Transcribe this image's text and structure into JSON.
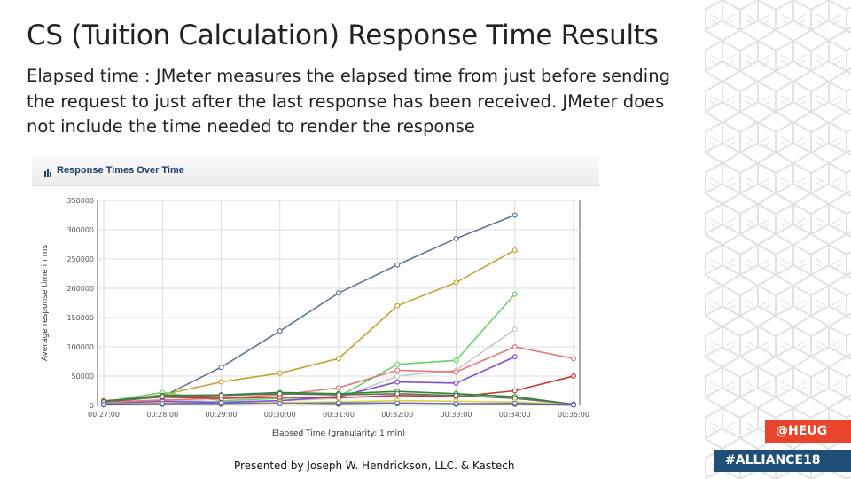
{
  "slide": {
    "title": "CS (Tuition Calculation) Response Time Results",
    "body": "Elapsed time : JMeter measures the elapsed time from just before sending the request to just after the last response has been received. JMeter does not include the time needed to render the response",
    "footer": "Presented by Joseph W. Hendrickson, LLC. & Kastech"
  },
  "badges": {
    "heug": "@HEUG",
    "alliance": "#ALLIANCE18"
  },
  "chart_data": {
    "type": "line",
    "title": "Response Times Over Time",
    "xlabel": "Elapsed Time (granularity: 1 min)",
    "ylabel": "Average response time in ms",
    "ylim": [
      0,
      350000
    ],
    "yticks": [
      0,
      50000,
      100000,
      150000,
      200000,
      250000,
      300000,
      350000
    ],
    "x": [
      "00:27:00",
      "00:28:00",
      "00:29:00",
      "00:30:00",
      "00:31:00",
      "00:32:00",
      "00:33:00",
      "00:34:00",
      "00:35:00"
    ],
    "grid": true,
    "series": [
      {
        "color": "#5b7898",
        "values": [
          5000,
          15000,
          65000,
          127000,
          192000,
          240000,
          285000,
          325000,
          null
        ]
      },
      {
        "color": "#c9a030",
        "values": [
          6000,
          18000,
          40000,
          55000,
          80000,
          170000,
          210000,
          265000,
          null
        ]
      },
      {
        "color": "#6ad26a",
        "values": [
          6000,
          22000,
          8000,
          12000,
          15000,
          70000,
          77000,
          190000,
          null
        ]
      },
      {
        "color": "#c8c8c8",
        "values": [
          4000,
          10000,
          6000,
          8000,
          12000,
          50000,
          60000,
          130000,
          null
        ]
      },
      {
        "color": "#e87878",
        "values": [
          6000,
          9000,
          12000,
          18000,
          30000,
          60000,
          57000,
          100000,
          80000
        ]
      },
      {
        "color": "#8050d0",
        "values": [
          3000,
          7000,
          5000,
          8000,
          15000,
          40000,
          38000,
          83000,
          null
        ]
      },
      {
        "color": "#c83838",
        "values": [
          8000,
          14000,
          12000,
          14000,
          13000,
          17000,
          15000,
          25000,
          50000
        ]
      },
      {
        "color": "#2f8a2f",
        "values": [
          7000,
          17000,
          18000,
          22000,
          20000,
          24000,
          20000,
          15000,
          2000
        ]
      },
      {
        "color": "#607060",
        "values": [
          6000,
          15000,
          17000,
          20000,
          18000,
          20000,
          17000,
          12000,
          2000
        ]
      },
      {
        "color": "#e0d040",
        "values": [
          2000,
          4000,
          3000,
          5000,
          6000,
          8000,
          7000,
          6000,
          1000
        ]
      },
      {
        "color": "#4a4a4a",
        "values": [
          1000,
          2000,
          2000,
          3000,
          2000,
          3000,
          2000,
          2000,
          500
        ]
      },
      {
        "color": "#6070c0",
        "values": [
          1500,
          3000,
          4000,
          3000,
          4000,
          4000,
          3000,
          3500,
          800
        ]
      }
    ]
  }
}
